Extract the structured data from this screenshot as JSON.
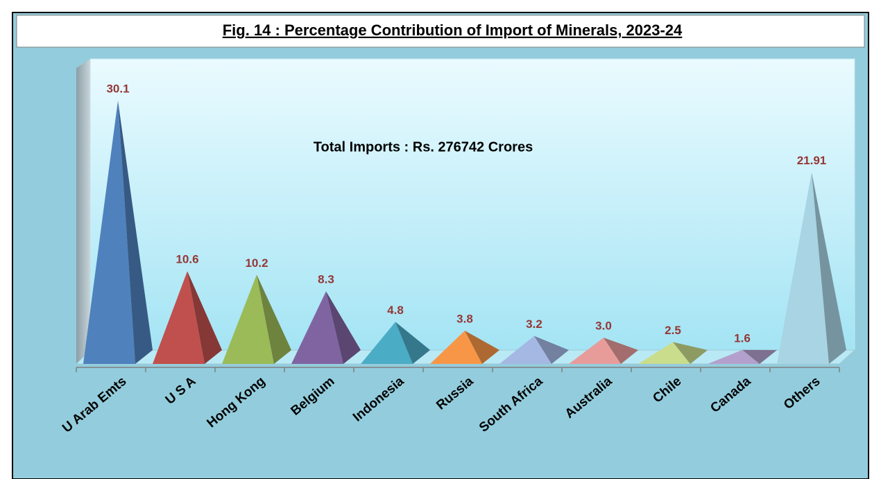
{
  "chart_data": {
    "type": "pyramid",
    "title": "Fig. 14 : Percentage Contribution of  Import of Minerals, 2023-24",
    "annotation": "Total Imports : Rs.  276742 Crores",
    "categories": [
      "U Arab Emts",
      "U S A",
      "Hong Kong",
      "Belgium",
      "Indonesia",
      "Russia",
      "South Africa",
      "Australia",
      "Chile",
      "Canada",
      "Others"
    ],
    "values": [
      30.1,
      10.6,
      10.2,
      8.3,
      4.8,
      3.8,
      3.2,
      3.0,
      2.5,
      1.6,
      21.91
    ],
    "value_labels": [
      "30.1",
      "10.6",
      "10.2",
      "8.3",
      "4.8",
      "3.8",
      "3.2",
      "3.0",
      "2.5",
      "1.6",
      "21.91"
    ],
    "colors": [
      "#4f81bd",
      "#c0504d",
      "#9bbb59",
      "#8064a2",
      "#4bacc6",
      "#f79646",
      "#a5b7e3",
      "#e89c9a",
      "#c9dd8d",
      "#b4a0cc",
      "#a8d4e3"
    ]
  }
}
